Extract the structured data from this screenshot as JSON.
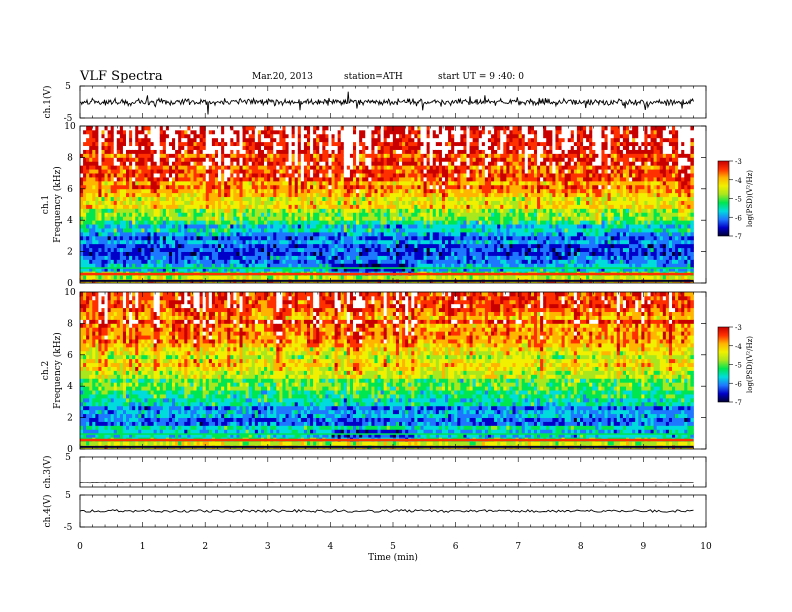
{
  "header": {
    "title": "VLF  Spectra",
    "date": "Mar.20, 2013",
    "station": "station=ATH",
    "start": "start  UT  =   9  :40:  0"
  },
  "colors": {
    "scale": [
      "#000033",
      "#0000c8",
      "#1e78ff",
      "#00dcdc",
      "#00e650",
      "#a8e61e",
      "#f0f000",
      "#ffb400",
      "#ff3000",
      "#c80000",
      "#ffffff"
    ],
    "trace": "#000000"
  },
  "chart_data": [
    {
      "type": "line",
      "panel": "ch1-waveform",
      "ylabel": "ch.1(V)",
      "ylim": [
        -5,
        5
      ],
      "ytick_labels": [
        "5",
        "-5"
      ],
      "series": [
        {
          "values_summary": "noisy baseline near 0 V, excursions to about +-2.5 V"
        }
      ]
    },
    {
      "type": "heatmap",
      "panel": "ch1-spectrogram",
      "ylabel_top": "ch.1",
      "ylabel": "Frequency  (kHz)",
      "ylim": [
        0,
        10
      ],
      "ytick_labels": [
        "0",
        "2",
        "4",
        "6",
        "8",
        "10"
      ],
      "colorbar": {
        "label": "log(PSD)(V²/Hz)",
        "range": [
          -7,
          -3
        ],
        "tick_labels": [
          "-3",
          "-4",
          "-5",
          "-6",
          "-7"
        ]
      },
      "freq_profile_logpsd": [
        [
          0,
          -4.2
        ],
        [
          1,
          -5.8
        ],
        [
          2,
          -6.2
        ],
        [
          3,
          -6.0
        ],
        [
          4,
          -5.5
        ],
        [
          5,
          -4.9
        ],
        [
          6,
          -4.4
        ],
        [
          7,
          -4.0
        ],
        [
          8,
          -3.8
        ],
        [
          9,
          -3.6
        ],
        [
          10,
          -3.5
        ]
      ]
    },
    {
      "type": "heatmap",
      "panel": "ch2-spectrogram",
      "ylabel_top": "ch.2",
      "ylabel": "Frequency  (kHz)",
      "ylim": [
        0,
        10
      ],
      "ytick_labels": [
        "0",
        "2",
        "4",
        "6",
        "8",
        "10"
      ],
      "colorbar": {
        "label": "log(PSD)(V²/Hz)",
        "range": [
          -7,
          -3
        ],
        "tick_labels": [
          "-3",
          "-4",
          "-5",
          "-6",
          "-7"
        ]
      },
      "freq_profile_logpsd": [
        [
          0,
          -4.3
        ],
        [
          1,
          -5.9
        ],
        [
          2,
          -6.0
        ],
        [
          3,
          -5.8
        ],
        [
          4,
          -5.4
        ],
        [
          5,
          -4.9
        ],
        [
          6,
          -4.6
        ],
        [
          7,
          -4.4
        ],
        [
          8,
          -4.2
        ],
        [
          9,
          -4.0
        ],
        [
          10,
          -3.9
        ]
      ]
    },
    {
      "type": "line",
      "panel": "ch3-waveform",
      "ylabel": "ch.3(V)",
      "ylim": [
        -5,
        5
      ],
      "ytick_labels": [
        "5"
      ],
      "series": [
        {
          "values_summary": "flat near -5 V"
        }
      ]
    },
    {
      "type": "line",
      "panel": "ch4-waveform",
      "ylabel": "ch.4(V)",
      "ylim": [
        -5,
        5
      ],
      "ytick_labels": [
        "5",
        "-5"
      ],
      "series": [
        {
          "values_summary": "flat near 0 V"
        }
      ]
    }
  ],
  "x_axis": {
    "label": "Time  (min)",
    "range": [
      0,
      10
    ],
    "data_end": 9.8,
    "tick_labels": [
      "0",
      "1",
      "2",
      "3",
      "4",
      "5",
      "6",
      "7",
      "8",
      "9",
      "10"
    ]
  }
}
